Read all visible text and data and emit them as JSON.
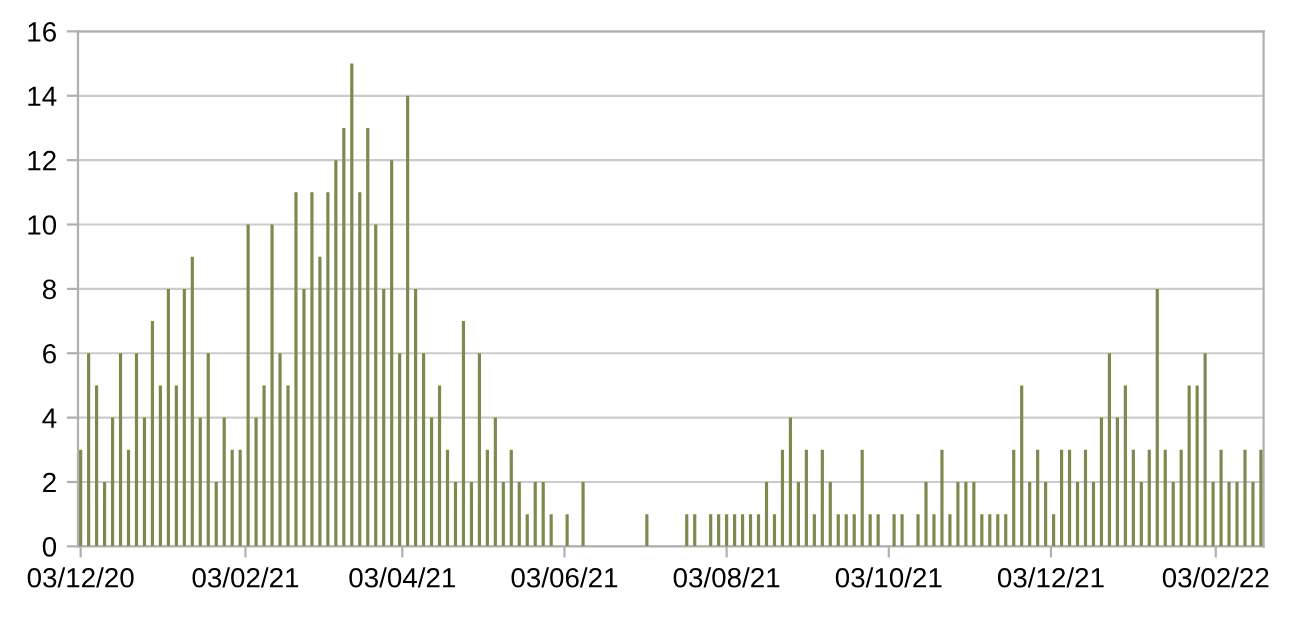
{
  "chart_data": {
    "type": "bar",
    "x": [
      "2020-12-03",
      "2020-12-06",
      "2020-12-09",
      "2020-12-12",
      "2020-12-15",
      "2020-12-18",
      "2020-12-21",
      "2020-12-24",
      "2020-12-27",
      "2020-12-30",
      "2021-01-02",
      "2021-01-05",
      "2021-01-08",
      "2021-01-11",
      "2021-01-14",
      "2021-01-17",
      "2021-01-20",
      "2021-01-23",
      "2021-01-26",
      "2021-01-29",
      "2021-02-01",
      "2021-02-04",
      "2021-02-07",
      "2021-02-10",
      "2021-02-13",
      "2021-02-16",
      "2021-02-19",
      "2021-02-22",
      "2021-02-25",
      "2021-02-28",
      "2021-03-03",
      "2021-03-06",
      "2021-03-09",
      "2021-03-12",
      "2021-03-15",
      "2021-03-18",
      "2021-03-21",
      "2021-03-24",
      "2021-03-27",
      "2021-03-30",
      "2021-04-02",
      "2021-04-05",
      "2021-04-08",
      "2021-04-11",
      "2021-04-14",
      "2021-04-17",
      "2021-04-20",
      "2021-04-23",
      "2021-04-26",
      "2021-04-29",
      "2021-05-02",
      "2021-05-05",
      "2021-05-08",
      "2021-05-11",
      "2021-05-14",
      "2021-05-17",
      "2021-05-20",
      "2021-05-23",
      "2021-05-26",
      "2021-05-29",
      "2021-06-01",
      "2021-06-04",
      "2021-06-07",
      "2021-06-10",
      "2021-06-13",
      "2021-06-16",
      "2021-06-19",
      "2021-06-22",
      "2021-06-25",
      "2021-06-28",
      "2021-07-01",
      "2021-07-04",
      "2021-07-07",
      "2021-07-10",
      "2021-07-13",
      "2021-07-16",
      "2021-07-19",
      "2021-07-22",
      "2021-07-25",
      "2021-07-28",
      "2021-07-31",
      "2021-08-03",
      "2021-08-06",
      "2021-08-09",
      "2021-08-12",
      "2021-08-15",
      "2021-08-18",
      "2021-08-21",
      "2021-08-24",
      "2021-08-27",
      "2021-08-30",
      "2021-09-02",
      "2021-09-05",
      "2021-09-08",
      "2021-09-11",
      "2021-09-14",
      "2021-09-17",
      "2021-09-20",
      "2021-09-23",
      "2021-09-26",
      "2021-09-29",
      "2021-10-02",
      "2021-10-05",
      "2021-10-08",
      "2021-10-11",
      "2021-10-14",
      "2021-10-17",
      "2021-10-20",
      "2021-10-23",
      "2021-10-26",
      "2021-10-29",
      "2021-11-01",
      "2021-11-04",
      "2021-11-07",
      "2021-11-10",
      "2021-11-13",
      "2021-11-16",
      "2021-11-19",
      "2021-11-22",
      "2021-11-25",
      "2021-11-28",
      "2021-12-01",
      "2021-12-04",
      "2021-12-07",
      "2021-12-10",
      "2021-12-13",
      "2021-12-16",
      "2021-12-19",
      "2021-12-22",
      "2021-12-25",
      "2021-12-28",
      "2021-12-31",
      "2022-01-03",
      "2022-01-06",
      "2022-01-09",
      "2022-01-12",
      "2022-01-15",
      "2022-01-18",
      "2022-01-21",
      "2022-01-24",
      "2022-01-27",
      "2022-01-30",
      "2022-02-02",
      "2022-02-05",
      "2022-02-08",
      "2022-02-11",
      "2022-02-14",
      "2022-02-17",
      "2022-02-20"
    ],
    "values": [
      3,
      6,
      5,
      2,
      4,
      6,
      3,
      6,
      4,
      7,
      5,
      8,
      5,
      8,
      9,
      4,
      6,
      2,
      4,
      3,
      3,
      10,
      4,
      5,
      10,
      6,
      5,
      11,
      8,
      11,
      9,
      11,
      12,
      13,
      15,
      11,
      13,
      10,
      8,
      12,
      6,
      14,
      8,
      6,
      4,
      5,
      3,
      2,
      7,
      2,
      6,
      3,
      4,
      2,
      3,
      2,
      1,
      2,
      2,
      1,
      0,
      1,
      0,
      2,
      0,
      0,
      0,
      0,
      0,
      0,
      0,
      1,
      0,
      0,
      0,
      0,
      1,
      1,
      0,
      1,
      1,
      1,
      1,
      1,
      1,
      1,
      2,
      1,
      3,
      4,
      2,
      3,
      1,
      3,
      2,
      1,
      1,
      1,
      3,
      1,
      1,
      0,
      1,
      1,
      0,
      1,
      2,
      1,
      3,
      1,
      2,
      2,
      2,
      1,
      1,
      1,
      1,
      3,
      5,
      2,
      3,
      2,
      1,
      3,
      3,
      2,
      3,
      2,
      4,
      6,
      4,
      5,
      3,
      2,
      3,
      8,
      3,
      2,
      3,
      5,
      5,
      6,
      2,
      3,
      2,
      2,
      3,
      2,
      3
    ],
    "color": "#7d8a4e",
    "xlim": [
      "2020-12-02",
      "2022-02-21"
    ],
    "xticks": [
      {
        "value": "2020-12-03",
        "label": "03/12/20"
      },
      {
        "value": "2021-02-03",
        "label": "03/02/21"
      },
      {
        "value": "2021-04-03",
        "label": "03/04/21"
      },
      {
        "value": "2021-06-03",
        "label": "03/06/21"
      },
      {
        "value": "2021-08-03",
        "label": "03/08/21"
      },
      {
        "value": "2021-10-03",
        "label": "03/10/21"
      },
      {
        "value": "2021-12-03",
        "label": "03/12/21"
      },
      {
        "value": "2022-02-03",
        "label": "03/02/22"
      }
    ],
    "ylim": [
      0,
      16
    ],
    "yticks": [
      0,
      2,
      4,
      6,
      8,
      10,
      12,
      14,
      16
    ],
    "grid": "y"
  }
}
